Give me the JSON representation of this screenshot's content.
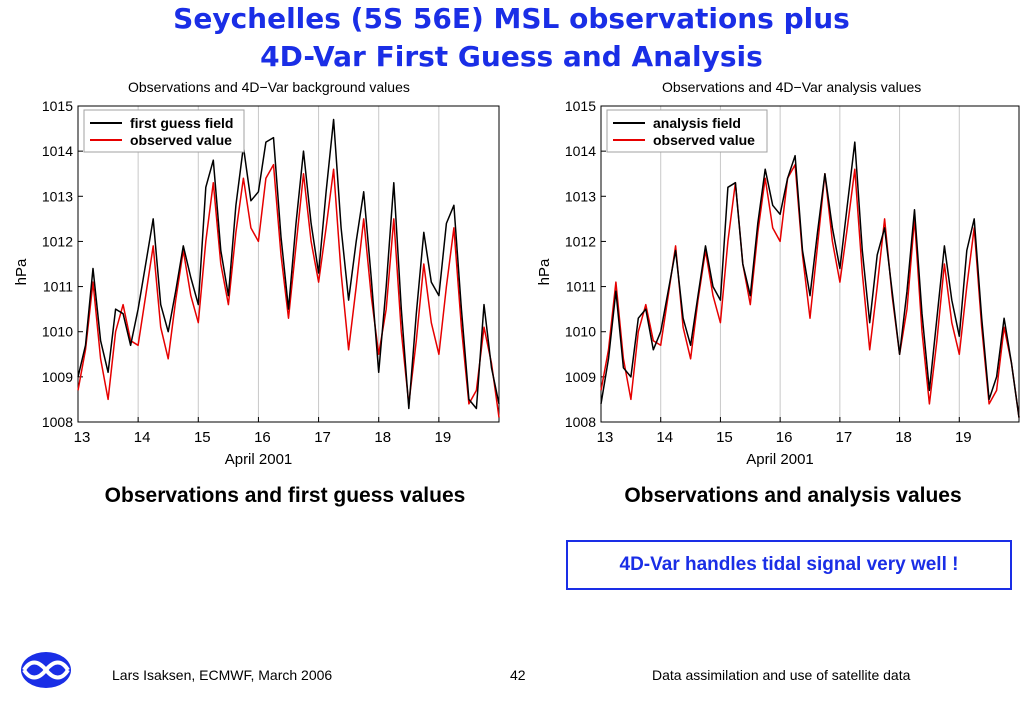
{
  "slide": {
    "title_line1": "Seychelles (5S 56E) MSL observations plus",
    "title_line2": "4D-Var First Guess and Analysis",
    "caption_left": "Observations and first guess values",
    "caption_right": "Observations and analysis values",
    "callout": "4D-Var handles tidal signal very well !",
    "footer_left": "Lars Isaksen, ECMWF, March 2006",
    "footer_page": "42",
    "footer_right": "Data assimilation and use of satellite data",
    "logo_icon": "ecmwf-logo-icon",
    "colors": {
      "title": "#1a2ee6",
      "model_line": "#000000",
      "observed_line": "#e60000",
      "logo": "#1a2ee6"
    }
  },
  "chart_data": [
    {
      "type": "line",
      "title": "Observations and 4D−Var background values",
      "xlabel": "April 2001",
      "ylabel": "hPa",
      "xlim": [
        13.0,
        20.0
      ],
      "ylim": [
        1008,
        1015
      ],
      "xticks": [
        13,
        14,
        15,
        16,
        17,
        18,
        19
      ],
      "yticks": [
        1008,
        1009,
        1010,
        1011,
        1012,
        1013,
        1014,
        1015
      ],
      "grid": "vertical",
      "legend": "top-left",
      "x": [
        13.0,
        13.125,
        13.25,
        13.375,
        13.5,
        13.625,
        13.75,
        13.875,
        14.0,
        14.125,
        14.25,
        14.375,
        14.5,
        14.625,
        14.75,
        14.875,
        15.0,
        15.125,
        15.25,
        15.375,
        15.5,
        15.625,
        15.75,
        15.875,
        16.0,
        16.125,
        16.25,
        16.375,
        16.5,
        16.625,
        16.75,
        16.875,
        17.0,
        17.125,
        17.25,
        17.375,
        17.5,
        17.625,
        17.75,
        17.875,
        18.0,
        18.125,
        18.25,
        18.375,
        18.5,
        18.625,
        18.75,
        18.875,
        19.0,
        19.125,
        19.25,
        19.375,
        19.5,
        19.625,
        19.75,
        19.875,
        20.0
      ],
      "series": [
        {
          "name": "first guess field",
          "values": [
            1009.0,
            1009.7,
            1011.4,
            1009.8,
            1009.1,
            1010.5,
            1010.4,
            1009.7,
            1010.5,
            1011.5,
            1012.5,
            1010.6,
            1010.0,
            1010.9,
            1011.9,
            1011.2,
            1010.6,
            1013.2,
            1013.8,
            1011.8,
            1010.8,
            1012.8,
            1014.1,
            1012.9,
            1013.1,
            1014.2,
            1014.3,
            1012.1,
            1010.5,
            1012.4,
            1014.0,
            1012.4,
            1011.3,
            1013.1,
            1014.7,
            1012.3,
            1010.7,
            1012.0,
            1013.1,
            1011.2,
            1009.1,
            1011.0,
            1013.3,
            1010.5,
            1008.3,
            1010.4,
            1012.2,
            1011.1,
            1010.8,
            1012.4,
            1012.8,
            1010.5,
            1008.5,
            1008.3,
            1010.6,
            1009.2,
            1008.4
          ]
        },
        {
          "name": "observed value",
          "values": [
            1008.7,
            1009.6,
            1011.1,
            1009.4,
            1008.5,
            1010.0,
            1010.6,
            1009.8,
            1009.7,
            1010.8,
            1011.9,
            1010.1,
            1009.4,
            1010.7,
            1011.8,
            1010.8,
            1010.2,
            1012.0,
            1013.3,
            1011.5,
            1010.6,
            1012.2,
            1013.4,
            1012.3,
            1012.0,
            1013.4,
            1013.7,
            1011.7,
            1010.3,
            1011.9,
            1013.5,
            1012.0,
            1011.1,
            1012.3,
            1013.6,
            1011.3,
            1009.6,
            1011.0,
            1012.5,
            1010.8,
            1009.5,
            1010.5,
            1012.5,
            1010.0,
            1008.4,
            1009.8,
            1011.5,
            1010.2,
            1009.5,
            1011.0,
            1012.3,
            1010.1,
            1008.4,
            1008.7,
            1010.1,
            1009.3,
            1008.1
          ]
        }
      ]
    },
    {
      "type": "line",
      "title": "Observations and 4D−Var analysis values",
      "xlabel": "April 2001",
      "ylabel": "hPa",
      "xlim": [
        13.0,
        20.0
      ],
      "ylim": [
        1008,
        1015
      ],
      "xticks": [
        13,
        14,
        15,
        16,
        17,
        18,
        19
      ],
      "yticks": [
        1008,
        1009,
        1010,
        1011,
        1012,
        1013,
        1014,
        1015
      ],
      "grid": "vertical",
      "legend": "top-left",
      "x": [
        13.0,
        13.125,
        13.25,
        13.375,
        13.5,
        13.625,
        13.75,
        13.875,
        14.0,
        14.125,
        14.25,
        14.375,
        14.5,
        14.625,
        14.75,
        14.875,
        15.0,
        15.125,
        15.25,
        15.375,
        15.5,
        15.625,
        15.75,
        15.875,
        16.0,
        16.125,
        16.25,
        16.375,
        16.5,
        16.625,
        16.75,
        16.875,
        17.0,
        17.125,
        17.25,
        17.375,
        17.5,
        17.625,
        17.75,
        17.875,
        18.0,
        18.125,
        18.25,
        18.375,
        18.5,
        18.625,
        18.75,
        18.875,
        19.0,
        19.125,
        19.25,
        19.375,
        19.5,
        19.625,
        19.75,
        19.875,
        20.0
      ],
      "series": [
        {
          "name": "analysis field",
          "values": [
            1008.4,
            1009.4,
            1010.9,
            1009.2,
            1009.0,
            1010.3,
            1010.5,
            1009.6,
            1010.0,
            1010.9,
            1011.8,
            1010.3,
            1009.7,
            1010.8,
            1011.9,
            1011.0,
            1010.7,
            1013.2,
            1013.3,
            1011.5,
            1010.8,
            1012.4,
            1013.6,
            1012.8,
            1012.6,
            1013.4,
            1013.9,
            1011.8,
            1010.8,
            1012.2,
            1013.5,
            1012.3,
            1011.4,
            1012.8,
            1014.2,
            1011.8,
            1010.2,
            1011.7,
            1012.3,
            1010.9,
            1009.5,
            1010.9,
            1012.7,
            1010.4,
            1008.7,
            1010.3,
            1011.9,
            1010.7,
            1009.9,
            1011.8,
            1012.5,
            1010.3,
            1008.5,
            1009.0,
            1010.3,
            1009.3,
            1008.1
          ]
        },
        {
          "name": "observed value",
          "values": [
            1008.7,
            1009.6,
            1011.1,
            1009.4,
            1008.5,
            1010.0,
            1010.6,
            1009.8,
            1009.7,
            1010.8,
            1011.9,
            1010.1,
            1009.4,
            1010.7,
            1011.8,
            1010.8,
            1010.2,
            1012.0,
            1013.3,
            1011.5,
            1010.6,
            1012.2,
            1013.4,
            1012.3,
            1012.0,
            1013.4,
            1013.7,
            1011.7,
            1010.3,
            1011.9,
            1013.5,
            1012.0,
            1011.1,
            1012.3,
            1013.6,
            1011.3,
            1009.6,
            1011.0,
            1012.5,
            1010.8,
            1009.5,
            1010.5,
            1012.5,
            1010.0,
            1008.4,
            1009.8,
            1011.5,
            1010.2,
            1009.5,
            1011.0,
            1012.3,
            1010.1,
            1008.4,
            1008.7,
            1010.1,
            1009.3,
            1008.1
          ]
        }
      ]
    }
  ]
}
